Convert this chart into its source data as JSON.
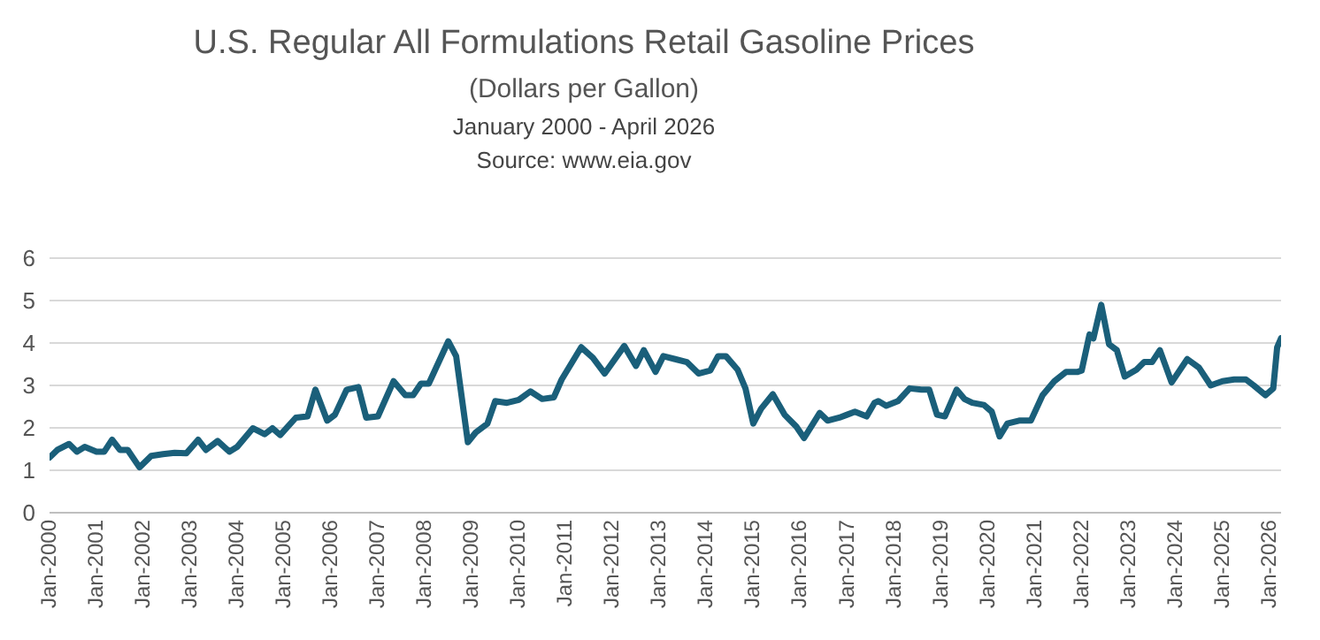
{
  "chart_data": {
    "type": "line",
    "title": "U.S. Regular All Formulations Retail Gasoline Prices",
    "subtitle": "(Dollars per Gallon)",
    "annotations": [
      "January 2000 - April 2026",
      "Source: www.eia.gov"
    ],
    "x": [
      "2000-01",
      "2000-03",
      "2000-06",
      "2000-08",
      "2000-10",
      "2001-01",
      "2001-03",
      "2001-05",
      "2001-07",
      "2001-09",
      "2001-12",
      "2002-03",
      "2002-06",
      "2002-09",
      "2002-12",
      "2003-03",
      "2003-05",
      "2003-08",
      "2003-11",
      "2004-01",
      "2004-05",
      "2004-08",
      "2004-10",
      "2004-12",
      "2005-04",
      "2005-07",
      "2005-09",
      "2005-12",
      "2006-02",
      "2006-05",
      "2006-08",
      "2006-10",
      "2007-01",
      "2007-05",
      "2007-08",
      "2007-10",
      "2007-12",
      "2008-02",
      "2008-07",
      "2008-09",
      "2008-12",
      "2009-02",
      "2009-05",
      "2009-07",
      "2009-10",
      "2010-01",
      "2010-04",
      "2010-07",
      "2010-10",
      "2010-12",
      "2011-05",
      "2011-08",
      "2011-11",
      "2012-04",
      "2012-07",
      "2012-09",
      "2012-12",
      "2013-02",
      "2013-05",
      "2013-08",
      "2013-11",
      "2014-02",
      "2014-04",
      "2014-06",
      "2014-09",
      "2014-11",
      "2015-01",
      "2015-03",
      "2015-06",
      "2015-09",
      "2015-12",
      "2016-02",
      "2016-06",
      "2016-08",
      "2016-11",
      "2017-01",
      "2017-03",
      "2017-06",
      "2017-08",
      "2017-09",
      "2017-11",
      "2018-02",
      "2018-05",
      "2018-08",
      "2018-10",
      "2018-12",
      "2019-02",
      "2019-05",
      "2019-07",
      "2019-09",
      "2019-12",
      "2020-02",
      "2020-04",
      "2020-06",
      "2020-09",
      "2020-12",
      "2021-03",
      "2021-06",
      "2021-09",
      "2021-12",
      "2022-01",
      "2022-03",
      "2022-04",
      "2022-06",
      "2022-08",
      "2022-10",
      "2022-12",
      "2023-03",
      "2023-05",
      "2023-07",
      "2023-09",
      "2023-12",
      "2024-04",
      "2024-07",
      "2024-10",
      "2025-01",
      "2025-04",
      "2025-07",
      "2025-09",
      "2025-12",
      "2026-02",
      "2026-03",
      "2026-04"
    ],
    "series": [
      {
        "color": "#1a5f7a",
        "values": [
          1.3,
          1.48,
          1.62,
          1.44,
          1.55,
          1.44,
          1.44,
          1.72,
          1.48,
          1.48,
          1.07,
          1.34,
          1.38,
          1.41,
          1.4,
          1.72,
          1.48,
          1.69,
          1.44,
          1.55,
          1.99,
          1.85,
          1.99,
          1.83,
          2.24,
          2.27,
          2.9,
          2.17,
          2.31,
          2.9,
          2.96,
          2.24,
          2.27,
          3.1,
          2.77,
          2.77,
          3.04,
          3.04,
          4.04,
          3.69,
          1.66,
          1.89,
          2.1,
          2.63,
          2.59,
          2.66,
          2.86,
          2.68,
          2.72,
          3.14,
          3.9,
          3.65,
          3.28,
          3.93,
          3.46,
          3.83,
          3.32,
          3.69,
          3.62,
          3.55,
          3.28,
          3.35,
          3.69,
          3.69,
          3.37,
          2.93,
          2.1,
          2.45,
          2.79,
          2.31,
          2.03,
          1.76,
          2.35,
          2.17,
          2.24,
          2.31,
          2.38,
          2.27,
          2.59,
          2.63,
          2.52,
          2.63,
          2.93,
          2.9,
          2.9,
          2.31,
          2.27,
          2.9,
          2.68,
          2.59,
          2.54,
          2.38,
          1.8,
          2.1,
          2.17,
          2.17,
          2.77,
          3.1,
          3.32,
          3.32,
          3.35,
          4.2,
          4.11,
          4.9,
          3.97,
          3.83,
          3.21,
          3.37,
          3.55,
          3.55,
          3.83,
          3.07,
          3.62,
          3.42,
          3.0,
          3.1,
          3.14,
          3.14,
          3.0,
          2.77,
          2.93,
          3.9,
          4.11
        ]
      }
    ],
    "xlim": [
      "2000-01",
      "2026-04"
    ],
    "xticks": [
      {
        "value": "2000-01",
        "label": "Jan-2000"
      },
      {
        "value": "2001-01",
        "label": "Jan-2001"
      },
      {
        "value": "2002-01",
        "label": "Jan-2002"
      },
      {
        "value": "2003-01",
        "label": "Jan-2003"
      },
      {
        "value": "2004-01",
        "label": "Jan-2004"
      },
      {
        "value": "2005-01",
        "label": "Jan-2005"
      },
      {
        "value": "2006-01",
        "label": "Jan-2006"
      },
      {
        "value": "2007-01",
        "label": "Jan-2007"
      },
      {
        "value": "2008-01",
        "label": "Jan-2008"
      },
      {
        "value": "2009-01",
        "label": "Jan-2009"
      },
      {
        "value": "2010-01",
        "label": "Jan-2010"
      },
      {
        "value": "2011-01",
        "label": "Jan-2011"
      },
      {
        "value": "2012-01",
        "label": "Jan-2012"
      },
      {
        "value": "2013-01",
        "label": "Jan-2013"
      },
      {
        "value": "2014-01",
        "label": "Jan-2014"
      },
      {
        "value": "2015-01",
        "label": "Jan-2015"
      },
      {
        "value": "2016-01",
        "label": "Jan-2016"
      },
      {
        "value": "2017-01",
        "label": "Jan-2017"
      },
      {
        "value": "2018-01",
        "label": "Jan-2018"
      },
      {
        "value": "2019-01",
        "label": "Jan-2019"
      },
      {
        "value": "2020-01",
        "label": "Jan-2020"
      },
      {
        "value": "2021-01",
        "label": "Jan-2021"
      },
      {
        "value": "2022-01",
        "label": "Jan-2022"
      },
      {
        "value": "2023-01",
        "label": "Jan-2023"
      },
      {
        "value": "2024-01",
        "label": "Jan-2024"
      },
      {
        "value": "2025-01",
        "label": "Jan-2025"
      },
      {
        "value": "2026-01",
        "label": "Jan-2026"
      }
    ],
    "ylim": [
      0,
      6
    ],
    "yticks": [
      0,
      1,
      2,
      3,
      4,
      5,
      6
    ],
    "grid": "y",
    "legend": false,
    "marker": "none",
    "line_style": "solid"
  }
}
